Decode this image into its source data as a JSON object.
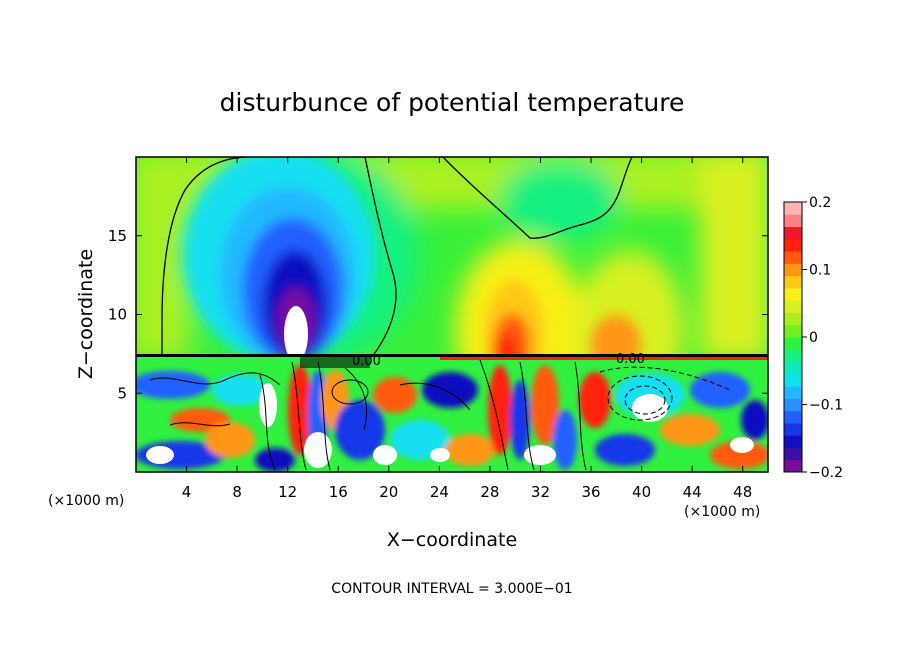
{
  "chart_data": {
    "type": "heatmap",
    "title": "disturbunce of potential temperature",
    "xlabel": "X−coordinate",
    "ylabel": "Z−coordinate",
    "x_unit_left": "(×1000 m)",
    "x_unit_right": "(×1000 m)",
    "x_ticks": [
      "4",
      "8",
      "12",
      "16",
      "20",
      "24",
      "28",
      "32",
      "36",
      "40",
      "44",
      "48"
    ],
    "y_ticks": [
      "5",
      "10",
      "15"
    ],
    "xlim": [
      0,
      50
    ],
    "ylim": [
      0,
      20
    ],
    "colorbar": {
      "range": [
        -0.2,
        0.2
      ],
      "tick_labels": [
        "0.2",
        "0.1",
        "0",
        "−0.1",
        "−0.2"
      ],
      "tick_values": [
        0.2,
        0.1,
        0,
        -0.1,
        -0.2
      ],
      "colors": [
        "#7a0a9e",
        "#3a10a8",
        "#1010c0",
        "#1838e8",
        "#2060ff",
        "#2a90ff",
        "#20b8ff",
        "#12e0f0",
        "#10e8c0",
        "#18f080",
        "#30f040",
        "#70f020",
        "#a8f020",
        "#d8f020",
        "#f8f018",
        "#ffc814",
        "#ff9612",
        "#ff5a10",
        "#ff2010",
        "#f01828",
        "#ff8080",
        "#ffb4b4"
      ]
    },
    "contour_labels": [
      "0.00",
      "0.00"
    ],
    "footer": "CONTOUR INTERVAL = 3.000E−01"
  }
}
